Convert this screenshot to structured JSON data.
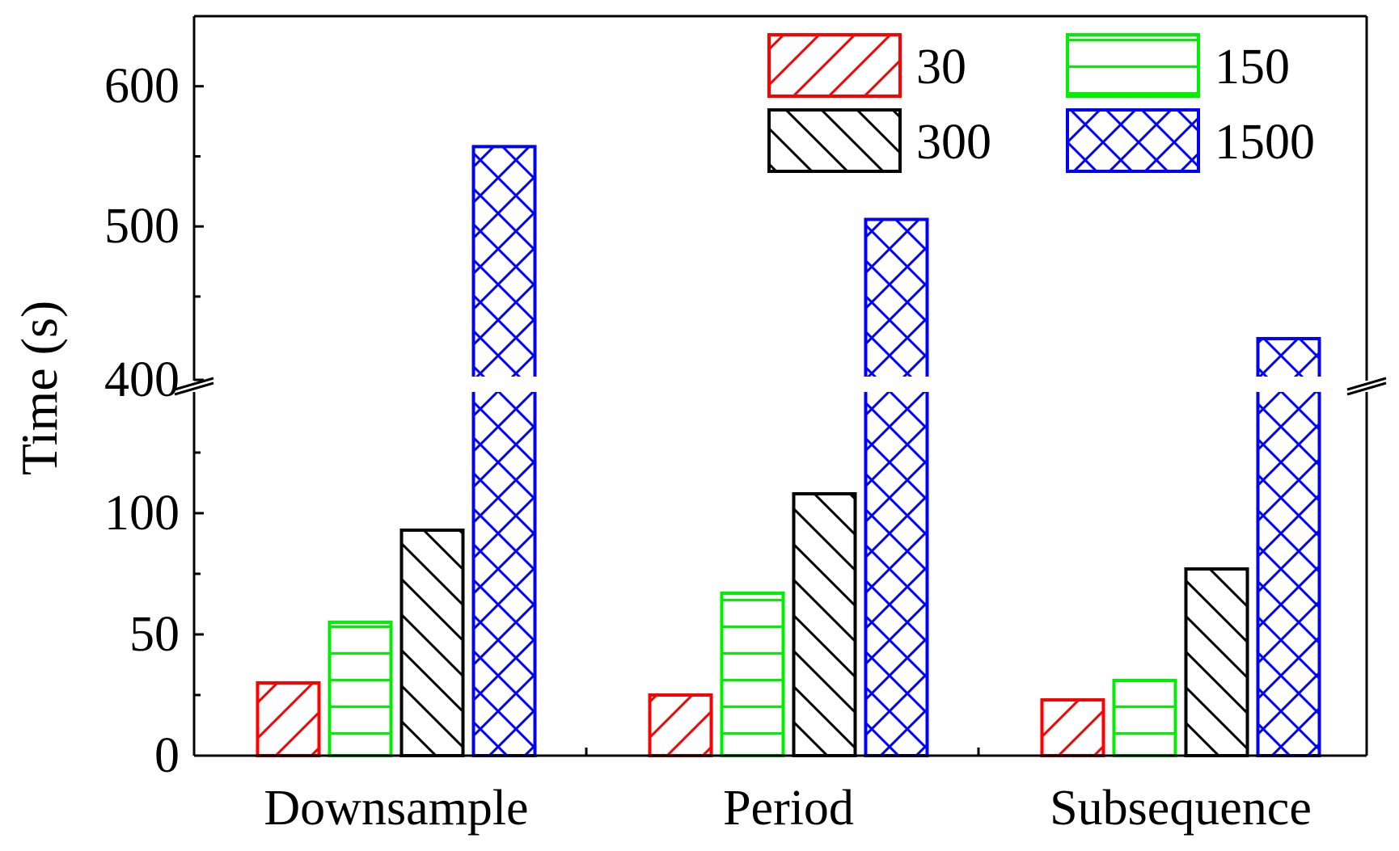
{
  "chart_data": {
    "type": "bar",
    "ylabel": "Time (s)",
    "xlabel": "",
    "categories": [
      "Downsample",
      "Period",
      "Subsequence"
    ],
    "series": [
      {
        "name": "30",
        "color": "#ff0000",
        "pattern": "diagonal-up",
        "values": [
          30,
          25,
          23
        ]
      },
      {
        "name": "150",
        "color": "#00ee00",
        "pattern": "horizontal",
        "values": [
          55,
          67,
          31
        ]
      },
      {
        "name": "300",
        "color": "#000000",
        "pattern": "diagonal-down",
        "values": [
          93,
          108,
          77
        ]
      },
      {
        "name": "1500",
        "color": "#0000ff",
        "pattern": "crosshatch",
        "values": [
          557,
          505,
          420
        ]
      }
    ],
    "y_axis": {
      "broken": true,
      "lower_range": [
        0,
        150
      ],
      "upper_range": [
        390,
        650
      ],
      "break_at": 400,
      "lower_ticks": [
        "0",
        "50",
        "100"
      ],
      "upper_ticks": [
        "400",
        "500",
        "600"
      ]
    },
    "legend_position": "top-right",
    "grid": false
  }
}
